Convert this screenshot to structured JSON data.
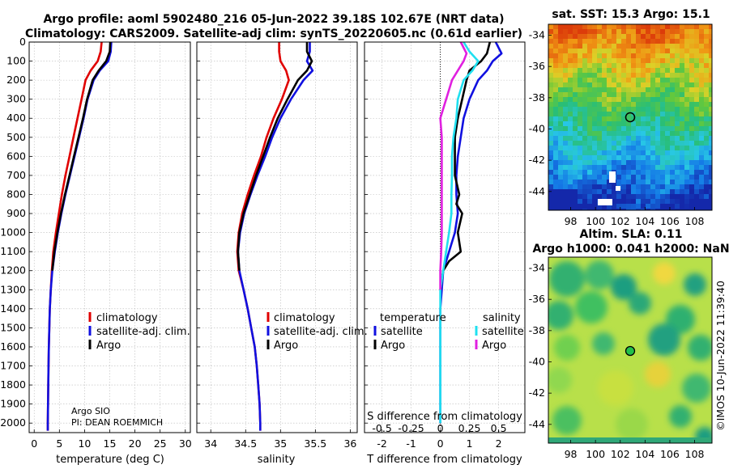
{
  "title_line1": "Argo profile: aoml 5902480_216 05-Jun-2022 39.18S 102.67E (NRT data)",
  "title_line2": "Climatology: CARS2009. Satellite-adj clim: synTS_20220605.nc (0.61d earlier)",
  "colors": {
    "red": "#e00000",
    "blue": "#1010e0",
    "black": "#000000",
    "cyan": "#20e0f0",
    "magenta": "#e020e0"
  },
  "depth_ticks": [
    "0",
    "100",
    "200",
    "300",
    "400",
    "500",
    "600",
    "700",
    "800",
    "900",
    "1000",
    "1100",
    "1200",
    "1300",
    "1400",
    "1500",
    "1600",
    "1700",
    "1800",
    "1900",
    "2000"
  ],
  "panels": {
    "temperature": {
      "xlabel": "temperature (deg C)",
      "xticks": [
        "0",
        "5",
        "10",
        "15",
        "20",
        "25",
        "30"
      ],
      "legend": [
        "climatology",
        "satellite-adj. clim.",
        "Argo"
      ],
      "note_line1": "Argo SIO",
      "note_line2": "PI: DEAN ROEMMICH"
    },
    "salinity": {
      "xlabel": "salinity",
      "xticks": [
        "34",
        "34.5",
        "35",
        "35.5",
        "36"
      ],
      "legend": [
        "climatology",
        "satellite-adj. clim.",
        "Argo"
      ]
    },
    "difference": {
      "xlabel": "T difference from climatology",
      "s_axis_label": "S difference from climatology",
      "t_ticks": [
        "-2",
        "-1",
        "0",
        "1",
        "2"
      ],
      "s_ticks": [
        "-0.5",
        "-0.25",
        "0",
        "0.25",
        "0.5"
      ],
      "legend_t_title": "temperature",
      "legend_t": [
        "satellite",
        "Argo"
      ],
      "legend_s_title": "salinity",
      "legend_s": [
        "satellite",
        "Argo"
      ]
    }
  },
  "maps": {
    "sst": {
      "title": "sat. SST: 15.3 Argo: 15.1"
    },
    "sla": {
      "title_line1": "Altim. SLA: 0.11",
      "title_line2": "Argo h1000: 0.041 h2000: NaN"
    },
    "lat_ticks": [
      "-34",
      "-36",
      "-38",
      "-40",
      "-42",
      "-44"
    ],
    "lon_ticks": [
      "98",
      "100",
      "102",
      "104",
      "106",
      "108"
    ]
  },
  "side_label": "©IMOS 10-Jun-2022 11:39:40",
  "chart_data": [
    {
      "type": "line",
      "title": "",
      "xlabel": "temperature (deg C)",
      "ylabel": "",
      "xlim": [
        -1,
        31
      ],
      "ylim": [
        2050,
        0
      ],
      "series": [
        {
          "name": "climatology",
          "x": [
            13.4,
            13.2,
            12.6,
            11.2,
            10.2,
            9.4,
            8.6,
            7.8,
            7.0,
            6.2,
            5.5,
            4.9,
            4.3,
            3.8,
            3.5,
            3.3,
            3.1,
            3.0,
            2.9,
            2.85,
            2.8,
            2.75,
            2.7,
            2.7
          ],
          "y": [
            0,
            50,
            100,
            150,
            200,
            300,
            400,
            500,
            600,
            700,
            800,
            900,
            1000,
            1100,
            1200,
            1300,
            1400,
            1500,
            1600,
            1700,
            1800,
            1900,
            2000,
            2040
          ]
        },
        {
          "name": "satellite-adj. clim.",
          "x": [
            15.3,
            15.2,
            14.7,
            13.0,
            11.8,
            10.6,
            9.8,
            8.9,
            8.0,
            7.1,
            6.2,
            5.4,
            4.7,
            4.1,
            3.6,
            3.3,
            3.1,
            3.0,
            2.9,
            2.85,
            2.8,
            2.75,
            2.7,
            2.7
          ],
          "y": [
            0,
            50,
            100,
            150,
            200,
            300,
            400,
            500,
            600,
            700,
            800,
            900,
            1000,
            1100,
            1200,
            1300,
            1400,
            1500,
            1600,
            1700,
            1800,
            1900,
            2000,
            2040
          ]
        },
        {
          "name": "Argo",
          "x": [
            15.1,
            15.0,
            14.3,
            12.8,
            11.6,
            10.5,
            9.7,
            8.8,
            7.9,
            7.0,
            6.1,
            5.3,
            4.6,
            4.0,
            3.6
          ],
          "y": [
            0,
            50,
            100,
            150,
            200,
            300,
            400,
            500,
            600,
            700,
            800,
            900,
            1000,
            1100,
            1200
          ]
        }
      ]
    },
    {
      "type": "line",
      "title": "",
      "xlabel": "salinity",
      "ylabel": "",
      "xlim": [
        33.8,
        36.1
      ],
      "ylim": [
        2050,
        0
      ],
      "series": [
        {
          "name": "climatology",
          "x": [
            34.98,
            34.98,
            35.0,
            35.08,
            35.12,
            35.02,
            34.9,
            34.8,
            34.72,
            34.62,
            34.53,
            34.45,
            34.4,
            34.38,
            34.4,
            34.47,
            34.53,
            34.58,
            34.63,
            34.66,
            34.68,
            34.7,
            34.71,
            34.71
          ],
          "y": [
            0,
            50,
            100,
            150,
            200,
            300,
            400,
            500,
            600,
            700,
            800,
            900,
            1000,
            1100,
            1200,
            1300,
            1400,
            1500,
            1600,
            1700,
            1800,
            1900,
            2000,
            2040
          ]
        },
        {
          "name": "satellite-adj. clim.",
          "x": [
            35.42,
            35.42,
            35.38,
            35.46,
            35.33,
            35.15,
            35.0,
            34.88,
            34.78,
            34.67,
            34.57,
            34.48,
            34.42,
            34.39,
            34.41,
            34.47,
            34.53,
            34.58,
            34.63,
            34.66,
            34.68,
            34.7,
            34.71,
            34.71
          ],
          "y": [
            0,
            50,
            100,
            150,
            200,
            300,
            400,
            500,
            600,
            700,
            800,
            900,
            1000,
            1100,
            1200,
            1300,
            1400,
            1500,
            1600,
            1700,
            1800,
            1900,
            2000,
            2040
          ]
        },
        {
          "name": "Argo",
          "x": [
            35.38,
            35.38,
            35.45,
            35.38,
            35.25,
            35.1,
            34.96,
            34.85,
            34.75,
            34.65,
            34.56,
            34.47,
            34.41,
            34.39,
            34.41
          ],
          "y": [
            0,
            50,
            100,
            150,
            200,
            300,
            400,
            500,
            600,
            700,
            800,
            900,
            1000,
            1100,
            1200
          ]
        }
      ]
    },
    {
      "type": "line",
      "title": "",
      "xlabel": "T difference from climatology",
      "ylabel": "",
      "xlim": [
        -2.6,
        2.9
      ],
      "ylim": [
        2050,
        0
      ],
      "series": [
        {
          "name": "temperature satellite",
          "x": [
            1.9,
            2.0,
            2.1,
            1.8,
            1.6,
            1.3,
            1.0,
            0.8,
            0.7,
            0.6,
            0.55,
            0.55,
            0.6,
            0.5,
            0.3,
            0.1,
            0.05,
            0.0,
            0.0,
            0.0,
            0.0,
            0.0,
            0.0
          ],
          "y": [
            0,
            30,
            60,
            100,
            150,
            200,
            300,
            400,
            500,
            600,
            700,
            800,
            900,
            1000,
            1100,
            1200,
            1300,
            1400,
            1500,
            1600,
            1700,
            1800,
            2000
          ]
        },
        {
          "name": "temperature Argo",
          "x": [
            1.7,
            1.6,
            1.4,
            1.0,
            0.9,
            0.75,
            0.6,
            0.5,
            0.5,
            0.5,
            0.65,
            0.55,
            0.75,
            0.6,
            0.7,
            0.3,
            0.1,
            0.0
          ],
          "y": [
            0,
            60,
            100,
            150,
            200,
            300,
            400,
            500,
            600,
            700,
            800,
            850,
            900,
            1000,
            1100,
            1150,
            1200,
            1300
          ]
        },
        {
          "name": "salinity satellite",
          "x": [
            0.8,
            1.0,
            1.3,
            1.1,
            0.8,
            0.6,
            0.55,
            0.45,
            0.4,
            0.4,
            0.38,
            0.38,
            0.3,
            0.2,
            0.1,
            0.0,
            0.0,
            0.0,
            0.0,
            0.0
          ],
          "y": [
            0,
            50,
            100,
            150,
            200,
            300,
            400,
            500,
            600,
            700,
            800,
            900,
            1000,
            1100,
            1200,
            1300,
            1400,
            1600,
            1800,
            2000
          ]
        },
        {
          "name": "salinity Argo",
          "x": [
            0.7,
            0.9,
            0.8,
            0.6,
            0.4,
            0.2,
            0.0,
            0.05,
            0.05,
            0.05,
            0.05,
            0.05,
            0.05,
            0.03,
            0.0,
            0.0
          ],
          "y": [
            0,
            60,
            100,
            150,
            200,
            300,
            400,
            500,
            600,
            700,
            800,
            900,
            1000,
            1100,
            1200,
            1300
          ]
        }
      ]
    }
  ]
}
